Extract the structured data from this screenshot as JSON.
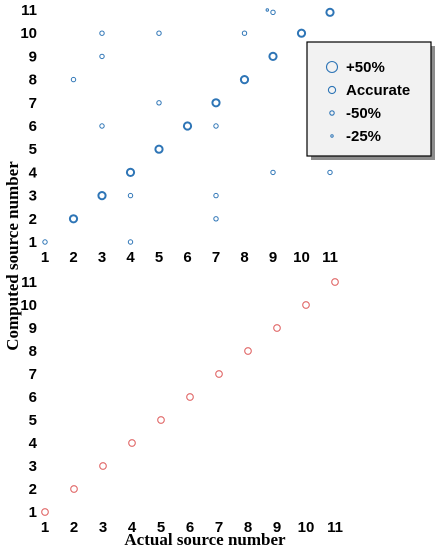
{
  "ylabel": "Computed source number",
  "xlabel": "Actual source number",
  "colors": {
    "blue": "#2e75b6",
    "red": "#e06666",
    "legend_bg": "#f2f2f2",
    "shadow": "#8c8c8c"
  },
  "legend": {
    "entries": [
      {
        "label": "+50%",
        "marker_size": "large"
      },
      {
        "label": "Accurate",
        "marker_size": "medium"
      },
      {
        "label": "-50%",
        "marker_size": "small"
      },
      {
        "label": "-25%",
        "marker_size": "dot"
      }
    ]
  },
  "chart_data": [
    {
      "type": "scatter",
      "panel": "top",
      "xlim": [
        1,
        11
      ],
      "ylim": [
        1,
        11
      ],
      "xticks": [
        1,
        2,
        3,
        4,
        5,
        6,
        7,
        8,
        9,
        10,
        11
      ],
      "yticks": [
        1,
        2,
        3,
        4,
        5,
        6,
        7,
        8,
        9,
        10,
        11
      ],
      "grid": false,
      "legend_position": "right",
      "marker": "open-circle",
      "color": "#2e75b6",
      "points": [
        {
          "x": 1,
          "y": 1,
          "size": "small"
        },
        {
          "x": 2,
          "y": 2,
          "size": "medium"
        },
        {
          "x": 2,
          "y": 8,
          "size": "small"
        },
        {
          "x": 3,
          "y": 3,
          "size": "medium"
        },
        {
          "x": 3,
          "y": 6,
          "size": "small"
        },
        {
          "x": 3,
          "y": 9,
          "size": "small"
        },
        {
          "x": 3,
          "y": 10,
          "size": "small"
        },
        {
          "x": 4,
          "y": 1,
          "size": "small"
        },
        {
          "x": 4,
          "y": 3,
          "size": "small"
        },
        {
          "x": 4,
          "y": 4,
          "size": "medium"
        },
        {
          "x": 5,
          "y": 5,
          "size": "medium"
        },
        {
          "x": 5,
          "y": 7,
          "size": "small"
        },
        {
          "x": 5,
          "y": 10,
          "size": "small"
        },
        {
          "x": 6,
          "y": 6,
          "size": "medium"
        },
        {
          "x": 7,
          "y": 2,
          "size": "small"
        },
        {
          "x": 7,
          "y": 3,
          "size": "small"
        },
        {
          "x": 7,
          "y": 6,
          "size": "small"
        },
        {
          "x": 7,
          "y": 7,
          "size": "medium"
        },
        {
          "x": 8,
          "y": 8,
          "size": "medium"
        },
        {
          "x": 8,
          "y": 10,
          "size": "small"
        },
        {
          "x": 9,
          "y": 4,
          "size": "small"
        },
        {
          "x": 9,
          "y": 9,
          "size": "medium"
        },
        {
          "x": 9,
          "y": 10.9,
          "size": "small"
        },
        {
          "x": 8.8,
          "y": 11,
          "size": "dot"
        },
        {
          "x": 10,
          "y": 10,
          "size": "medium"
        },
        {
          "x": 11,
          "y": 4,
          "size": "small"
        },
        {
          "x": 11,
          "y": 10.9,
          "size": "medium"
        }
      ]
    },
    {
      "type": "scatter",
      "panel": "bottom",
      "xlim": [
        1,
        11
      ],
      "ylim": [
        1,
        11
      ],
      "xticks": [
        1,
        2,
        3,
        4,
        5,
        6,
        7,
        8,
        9,
        10,
        11
      ],
      "yticks": [
        1,
        2,
        3,
        4,
        5,
        6,
        7,
        8,
        9,
        10,
        11
      ],
      "grid": false,
      "marker": "open-circle",
      "color": "#e06666",
      "points": [
        {
          "x": 1,
          "y": 1
        },
        {
          "x": 2,
          "y": 2
        },
        {
          "x": 3,
          "y": 3
        },
        {
          "x": 4,
          "y": 4
        },
        {
          "x": 5,
          "y": 5
        },
        {
          "x": 6,
          "y": 6
        },
        {
          "x": 7,
          "y": 7
        },
        {
          "x": 8,
          "y": 8
        },
        {
          "x": 9,
          "y": 9
        },
        {
          "x": 10,
          "y": 10
        },
        {
          "x": 11,
          "y": 11
        }
      ]
    }
  ]
}
